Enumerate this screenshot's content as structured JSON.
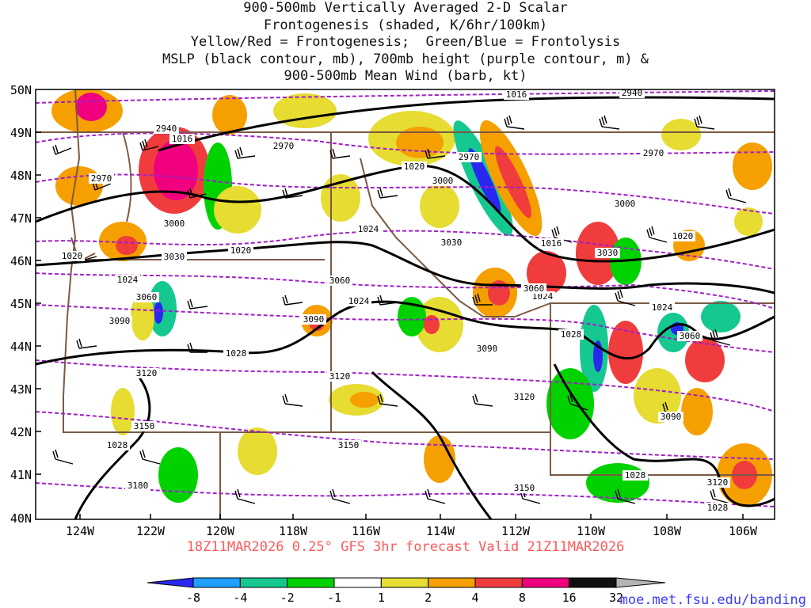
{
  "title_lines": [
    "900-500mb Vertically Averaged 2-D Scalar",
    "Frontogenesis (shaded, K/6hr/100km)",
    "Yellow/Red = Frontogenesis;  Green/Blue = Frontolysis",
    "MSLP (black contour, mb), 700mb height (purple contour, m) &",
    "900-500mb Mean Wind (barb, kt)"
  ],
  "lat_labels": [
    "50N",
    "49N",
    "48N",
    "47N",
    "46N",
    "45N",
    "44N",
    "43N",
    "42N",
    "41N",
    "40N"
  ],
  "lon_labels": [
    "124W",
    "122W",
    "120W",
    "118W",
    "116W",
    "114W",
    "112W",
    "110W",
    "108W",
    "106W"
  ],
  "valid_line": "18Z11MAR2026 0.25° GFS 3hr forecast Valid 21Z11MAR2026",
  "credit": "moe.met.fsu.edu/banding",
  "colorbar": {
    "ticks": [
      "-8",
      "-4",
      "-2",
      "-1",
      "1",
      "2",
      "4",
      "8",
      "16",
      "32"
    ],
    "colors": [
      "#2828f0",
      "#1fa0ff",
      "#14c890",
      "#00d200",
      "#ffffff",
      "#e6dc32",
      "#f5a000",
      "#f03c3c",
      "#f0007f",
      "#101010",
      "#b4b4b4"
    ]
  },
  "mslp_labels": [
    "1016",
    "1016",
    "1020",
    "1020",
    "1020",
    "1024",
    "1024",
    "1024",
    "1024",
    "1024",
    "1028",
    "1028",
    "1028",
    "1028",
    "1028",
    "1020"
  ],
  "height_labels": [
    "2940",
    "2940",
    "2970",
    "2970",
    "2970",
    "2970",
    "3000",
    "3000",
    "3000",
    "3030",
    "3030",
    "3030",
    "3060",
    "3060",
    "3060",
    "3060",
    "3090",
    "3090",
    "3090",
    "3090",
    "3120",
    "3120",
    "3120",
    "3120",
    "3150",
    "3150",
    "3150",
    "3180"
  ]
}
